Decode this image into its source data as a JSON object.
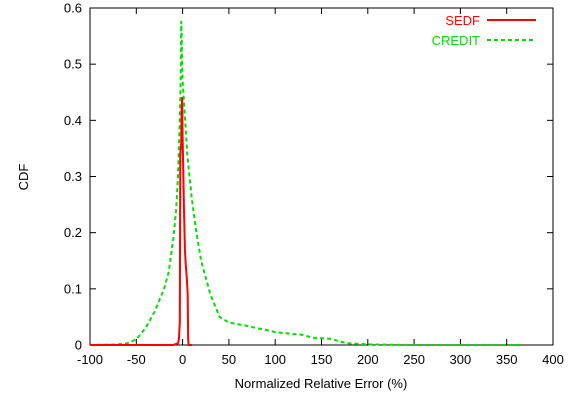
{
  "chart_data": {
    "type": "line",
    "title": "",
    "xlabel": "Normalized Relative Error (%)",
    "ylabel": "CDF",
    "xlim": [
      -100,
      400
    ],
    "ylim": [
      0,
      0.6
    ],
    "xticks": [
      -100,
      -50,
      0,
      50,
      100,
      150,
      200,
      250,
      300,
      350,
      400
    ],
    "yticks": [
      0,
      0.1,
      0.2,
      0.3,
      0.4,
      0.5,
      0.6
    ],
    "grid": false,
    "legend": "top-right",
    "series": [
      {
        "name": "SEDF",
        "color": "#ff0000",
        "dash": "solid",
        "points": [
          [
            -100,
            0
          ],
          [
            -10,
            0
          ],
          [
            -5,
            0.003
          ],
          [
            -4,
            0.01
          ],
          [
            -3,
            0.04
          ],
          [
            -2.5,
            0.34
          ],
          [
            -1.5,
            0.36
          ],
          [
            -1,
            0.42
          ],
          [
            -0.5,
            0.44
          ],
          [
            0,
            0.37
          ],
          [
            0.5,
            0.33
          ],
          [
            1.5,
            0.24
          ],
          [
            2.5,
            0.17
          ],
          [
            3.5,
            0.14
          ],
          [
            4.5,
            0.12
          ],
          [
            5.5,
            0.09
          ],
          [
            6,
            0.01
          ],
          [
            6.5,
            0
          ],
          [
            10,
            0
          ]
        ]
      },
      {
        "name": "CREDIT",
        "color": "#00e000",
        "dash": "dashed",
        "points": [
          [
            -100,
            0
          ],
          [
            -70,
            0.001
          ],
          [
            -60,
            0.003
          ],
          [
            -50,
            0.01
          ],
          [
            -40,
            0.03
          ],
          [
            -30,
            0.06
          ],
          [
            -20,
            0.1
          ],
          [
            -15,
            0.13
          ],
          [
            -10,
            0.19
          ],
          [
            -7,
            0.24
          ],
          [
            -5,
            0.3
          ],
          [
            -3,
            0.4
          ],
          [
            -2,
            0.48
          ],
          [
            -1.5,
            0.576
          ],
          [
            -1,
            0.55
          ],
          [
            0,
            0.47
          ],
          [
            2,
            0.42
          ],
          [
            5,
            0.34
          ],
          [
            10,
            0.26
          ],
          [
            15,
            0.2
          ],
          [
            20,
            0.15
          ],
          [
            25,
            0.12
          ],
          [
            30,
            0.09
          ],
          [
            35,
            0.07
          ],
          [
            40,
            0.05
          ],
          [
            45,
            0.045
          ],
          [
            50,
            0.04
          ],
          [
            60,
            0.037
          ],
          [
            70,
            0.034
          ],
          [
            80,
            0.03
          ],
          [
            90,
            0.027
          ],
          [
            100,
            0.023
          ],
          [
            110,
            0.021
          ],
          [
            130,
            0.018
          ],
          [
            140,
            0.013
          ],
          [
            150,
            0.012
          ],
          [
            160,
            0.011
          ],
          [
            170,
            0.006
          ],
          [
            180,
            0.003
          ],
          [
            200,
            0.001
          ],
          [
            250,
            0
          ],
          [
            365,
            0
          ]
        ]
      }
    ]
  }
}
